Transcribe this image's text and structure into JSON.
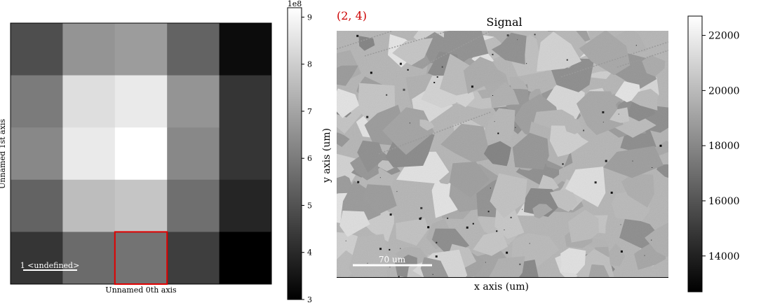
{
  "left_plot": {
    "xlabel": "Unnamed 0th axis",
    "ylabel": "Unnamed 1st axis",
    "scalebar_label": "1 <undefined>",
    "selected_cell": {
      "col": 2,
      "row": 4
    },
    "colormap": "gray"
  },
  "left_colorbar": {
    "multiplier": "1e8",
    "ticks": [
      "3",
      "4",
      "5",
      "6",
      "7",
      "8",
      "9"
    ],
    "range": [
      3.0,
      9.2
    ]
  },
  "right_plot": {
    "title": "Signal",
    "coord_label": "(2, 4)",
    "coord_color": "#cc0000",
    "xlabel": "x axis (um)",
    "ylabel": "y axis (um)",
    "scalebar_label": "70 um",
    "colormap": "gray"
  },
  "right_colorbar": {
    "ticks": [
      "14000",
      "16000",
      "18000",
      "20000",
      "22000"
    ],
    "range": [
      12700,
      22700
    ]
  },
  "chart_data": [
    {
      "type": "heatmap",
      "xlabel": "Unnamed 0th axis",
      "ylabel": "Unnamed 1st axis",
      "colorbar_multiplier": "1e8",
      "zlim": [
        3.0,
        9.2
      ],
      "values": [
        [
          4.9,
          6.6,
          6.8,
          5.4,
          3.3
        ],
        [
          6.0,
          8.4,
          8.7,
          6.6,
          4.3
        ],
        [
          6.3,
          8.7,
          9.2,
          6.3,
          4.3
        ],
        [
          5.4,
          7.6,
          7.8,
          5.7,
          3.9
        ],
        [
          4.3,
          5.6,
          5.8,
          4.5,
          3.0
        ]
      ],
      "highlight": {
        "col": 2,
        "row": 4,
        "color": "#e00000"
      }
    },
    {
      "type": "heatmap",
      "title": "Signal",
      "xlabel": "x axis (um)",
      "ylabel": "y axis (um)",
      "zlim": [
        12700,
        22700
      ],
      "colorbar_ticks": [
        14000,
        16000,
        18000,
        20000,
        22000
      ]
    }
  ]
}
